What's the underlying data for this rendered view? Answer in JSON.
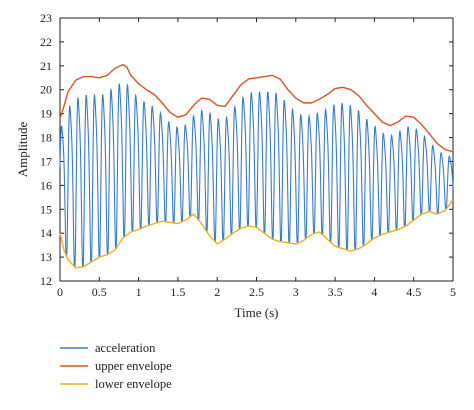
{
  "chart_data": {
    "type": "line",
    "title": "",
    "xlabel": "Time (s)",
    "ylabel": "Amplitude",
    "xlim": [
      0,
      5
    ],
    "ylim": [
      12,
      23
    ],
    "xticks": [
      0,
      0.5,
      1,
      1.5,
      2,
      2.5,
      3,
      3.5,
      4,
      4.5,
      5
    ],
    "xtick_labels": [
      "0",
      "0.5",
      "1",
      "1.5",
      "2",
      "2.5",
      "3",
      "3.5",
      "4",
      "4.5",
      "5"
    ],
    "yticks": [
      12,
      13,
      14,
      15,
      16,
      17,
      18,
      19,
      20,
      21,
      22,
      23
    ],
    "ytick_labels": [
      "12",
      "13",
      "14",
      "15",
      "16",
      "17",
      "18",
      "19",
      "20",
      "21",
      "22",
      "23"
    ],
    "grid": false,
    "legend_position": "below",
    "oscillation_period_s": 0.105,
    "series": [
      {
        "name": "acceleration",
        "color": "#3b7cc4",
        "kind": "oscillation between envelopes"
      },
      {
        "name": "upper envelope",
        "color": "#d4552b",
        "x": [
          0,
          0.05,
          0.1,
          0.2,
          0.3,
          0.4,
          0.5,
          0.6,
          0.7,
          0.8,
          0.85,
          0.9,
          1.0,
          1.1,
          1.2,
          1.3,
          1.4,
          1.5,
          1.6,
          1.7,
          1.8,
          1.9,
          2.0,
          2.1,
          2.2,
          2.3,
          2.4,
          2.5,
          2.6,
          2.7,
          2.8,
          2.9,
          3.0,
          3.1,
          3.2,
          3.3,
          3.4,
          3.5,
          3.6,
          3.7,
          3.8,
          3.9,
          4.0,
          4.1,
          4.2,
          4.3,
          4.4,
          4.5,
          4.6,
          4.7,
          4.8,
          4.9,
          5.0
        ],
        "y": [
          18.8,
          19.3,
          19.9,
          20.4,
          20.55,
          20.55,
          20.5,
          20.6,
          20.9,
          21.05,
          20.95,
          20.6,
          20.25,
          20.0,
          19.8,
          19.45,
          19.05,
          18.85,
          18.95,
          19.35,
          19.65,
          19.6,
          19.35,
          19.3,
          19.75,
          20.2,
          20.45,
          20.5,
          20.55,
          20.6,
          20.45,
          20.0,
          19.65,
          19.45,
          19.45,
          19.6,
          19.8,
          20.05,
          20.1,
          20.0,
          19.75,
          19.35,
          19.0,
          18.65,
          18.5,
          18.65,
          18.9,
          18.85,
          18.55,
          18.15,
          17.75,
          17.5,
          17.4
        ]
      },
      {
        "name": "lower envelope",
        "color": "#e8b124",
        "x": [
          0,
          0.05,
          0.1,
          0.2,
          0.3,
          0.4,
          0.5,
          0.6,
          0.7,
          0.8,
          0.9,
          1.0,
          1.1,
          1.2,
          1.3,
          1.4,
          1.5,
          1.6,
          1.7,
          1.8,
          1.9,
          2.0,
          2.1,
          2.2,
          2.3,
          2.4,
          2.5,
          2.6,
          2.7,
          2.8,
          2.9,
          3.0,
          3.1,
          3.2,
          3.3,
          3.4,
          3.5,
          3.6,
          3.7,
          3.8,
          3.9,
          4.0,
          4.1,
          4.2,
          4.3,
          4.4,
          4.5,
          4.6,
          4.7,
          4.8,
          4.9,
          5.0
        ],
        "y": [
          14.0,
          13.3,
          12.9,
          12.55,
          12.6,
          12.8,
          13.0,
          13.1,
          13.3,
          13.8,
          14.05,
          14.15,
          14.3,
          14.4,
          14.5,
          14.45,
          14.4,
          14.55,
          14.8,
          14.4,
          13.9,
          13.55,
          13.75,
          14.0,
          14.2,
          14.3,
          14.25,
          14.0,
          13.75,
          13.65,
          13.6,
          13.55,
          13.7,
          13.95,
          14.05,
          13.75,
          13.45,
          13.35,
          13.25,
          13.35,
          13.55,
          13.8,
          13.95,
          14.05,
          14.15,
          14.3,
          14.55,
          14.8,
          14.9,
          14.8,
          14.95,
          15.4
        ]
      }
    ]
  }
}
